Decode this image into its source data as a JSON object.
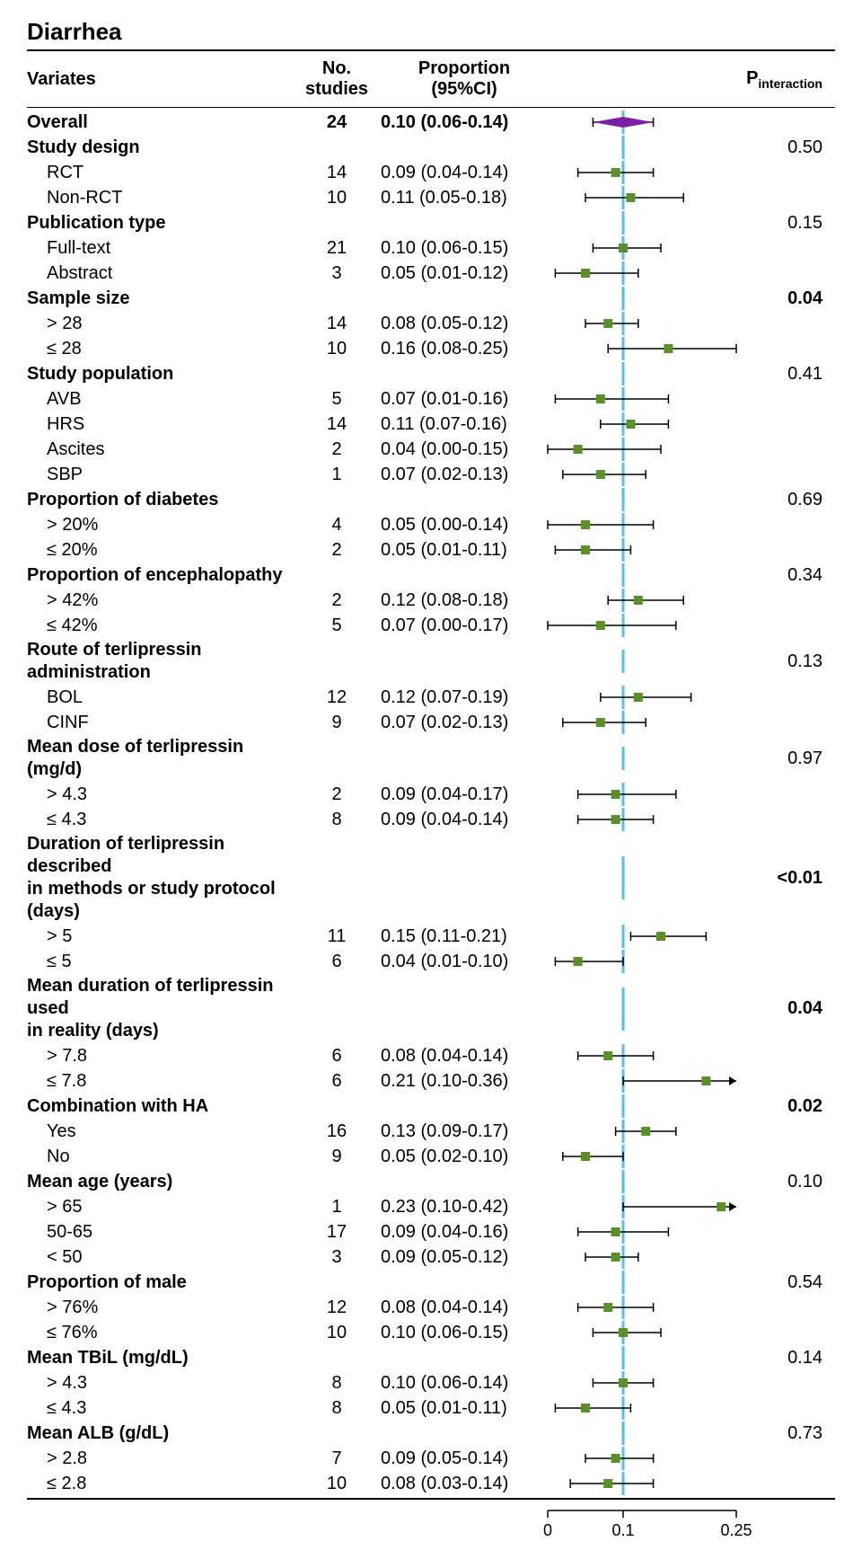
{
  "title": "Diarrhea",
  "headers": {
    "variates": "Variates",
    "studies_line1": "No.",
    "studies_line2": "studies",
    "prop_line1": "Proportion",
    "prop_line2": "(95%CI)",
    "pint_main": "P",
    "pint_sub": "interaction"
  },
  "plot": {
    "xmin": 0,
    "xmax": 0.25,
    "ref_line": 0.1,
    "ref_line_color": "#5bc0de",
    "marker_color": "#5a8f29",
    "marker_size": 10,
    "diamond_color": "#7b1fa2",
    "error_bar_color": "#000000",
    "tick_values": [
      0,
      0.1,
      0.25
    ],
    "tick_labels": [
      "0",
      "0.1",
      "0.25"
    ],
    "axis_font_size": 18
  },
  "rows": [
    {
      "type": "overall",
      "label": "Overall",
      "studies": "24",
      "prop": "0.10 (0.06-0.14)",
      "est": 0.1,
      "lo": 0.06,
      "hi": 0.14,
      "bold": true
    },
    {
      "type": "group",
      "label": "Study design",
      "pint": "0.50"
    },
    {
      "type": "item",
      "label": "RCT",
      "studies": "14",
      "prop": "0.09 (0.04-0.14)",
      "est": 0.09,
      "lo": 0.04,
      "hi": 0.14
    },
    {
      "type": "item",
      "label": "Non-RCT",
      "studies": "10",
      "prop": "0.11 (0.05-0.18)",
      "est": 0.11,
      "lo": 0.05,
      "hi": 0.18
    },
    {
      "type": "group",
      "label": "Publication type",
      "pint": "0.15"
    },
    {
      "type": "item",
      "label": "Full-text",
      "studies": "21",
      "prop": "0.10 (0.06-0.15)",
      "est": 0.1,
      "lo": 0.06,
      "hi": 0.15
    },
    {
      "type": "item",
      "label": "Abstract",
      "studies": "3",
      "prop": "0.05 (0.01-0.12)",
      "est": 0.05,
      "lo": 0.01,
      "hi": 0.12
    },
    {
      "type": "group",
      "label": "Sample size",
      "pint": "0.04",
      "pint_bold": true
    },
    {
      "type": "item",
      "label": "> 28",
      "studies": "14",
      "prop": "0.08 (0.05-0.12)",
      "est": 0.08,
      "lo": 0.05,
      "hi": 0.12
    },
    {
      "type": "item",
      "label": "≤ 28",
      "studies": "10",
      "prop": "0.16 (0.08-0.25)",
      "est": 0.16,
      "lo": 0.08,
      "hi": 0.25
    },
    {
      "type": "group",
      "label": "Study population",
      "pint": "0.41"
    },
    {
      "type": "item",
      "label": "AVB",
      "studies": "5",
      "prop": "0.07 (0.01-0.16)",
      "est": 0.07,
      "lo": 0.01,
      "hi": 0.16
    },
    {
      "type": "item",
      "label": "HRS",
      "studies": "14",
      "prop": "0.11 (0.07-0.16)",
      "est": 0.11,
      "lo": 0.07,
      "hi": 0.16
    },
    {
      "type": "item",
      "label": "Ascites",
      "studies": "2",
      "prop": "0.04 (0.00-0.15)",
      "est": 0.04,
      "lo": 0.0,
      "hi": 0.15
    },
    {
      "type": "item",
      "label": "SBP",
      "studies": "1",
      "prop": "0.07 (0.02-0.13)",
      "est": 0.07,
      "lo": 0.02,
      "hi": 0.13
    },
    {
      "type": "group",
      "label": "Proportion of diabetes",
      "pint": "0.69"
    },
    {
      "type": "item",
      "label": "> 20%",
      "studies": "4",
      "prop": "0.05 (0.00-0.14)",
      "est": 0.05,
      "lo": 0.0,
      "hi": 0.14
    },
    {
      "type": "item",
      "label": "≤ 20%",
      "studies": "2",
      "prop": "0.05 (0.01-0.11)",
      "est": 0.05,
      "lo": 0.01,
      "hi": 0.11
    },
    {
      "type": "group",
      "label": "Proportion of encephalopathy",
      "pint": "0.34"
    },
    {
      "type": "item",
      "label": "> 42%",
      "studies": "2",
      "prop": "0.12 (0.08-0.18)",
      "est": 0.12,
      "lo": 0.08,
      "hi": 0.18
    },
    {
      "type": "item",
      "label": "≤ 42%",
      "studies": "5",
      "prop": "0.07 (0.00-0.17)",
      "est": 0.07,
      "lo": 0.0,
      "hi": 0.17
    },
    {
      "type": "group",
      "label": "Route of terlipressin administration",
      "pint": "0.13"
    },
    {
      "type": "item",
      "label": "BOL",
      "studies": "12",
      "prop": "0.12 (0.07-0.19)",
      "est": 0.12,
      "lo": 0.07,
      "hi": 0.19
    },
    {
      "type": "item",
      "label": "CINF",
      "studies": "9",
      "prop": "0.07 (0.02-0.13)",
      "est": 0.07,
      "lo": 0.02,
      "hi": 0.13
    },
    {
      "type": "group",
      "label": "Mean dose of terlipressin (mg/d)",
      "pint": "0.97"
    },
    {
      "type": "item",
      "label": "> 4.3",
      "studies": "2",
      "prop": "0.09 (0.04-0.17)",
      "est": 0.09,
      "lo": 0.04,
      "hi": 0.17
    },
    {
      "type": "item",
      "label": "≤ 4.3",
      "studies": "8",
      "prop": "0.09 (0.04-0.14)",
      "est": 0.09,
      "lo": 0.04,
      "hi": 0.14
    },
    {
      "type": "group",
      "label": "Duration of terlipressin described",
      "label2": "in methods or study protocol (days)",
      "pint": "<0.01",
      "pint_bold": true
    },
    {
      "type": "item",
      "label": "> 5",
      "studies": "11",
      "prop": "0.15 (0.11-0.21)",
      "est": 0.15,
      "lo": 0.11,
      "hi": 0.21
    },
    {
      "type": "item",
      "label": "≤ 5",
      "studies": "6",
      "prop": "0.04 (0.01-0.10)",
      "est": 0.04,
      "lo": 0.01,
      "hi": 0.1
    },
    {
      "type": "group",
      "label": "Mean duration of terlipressin used",
      "label2": "in reality (days)",
      "pint": "0.04",
      "pint_bold": true
    },
    {
      "type": "item",
      "label": "> 7.8",
      "studies": "6",
      "prop": "0.08 (0.04-0.14)",
      "est": 0.08,
      "lo": 0.04,
      "hi": 0.14
    },
    {
      "type": "item",
      "label": "≤ 7.8",
      "studies": "6",
      "prop": "0.21 (0.10-0.36)",
      "est": 0.21,
      "lo": 0.1,
      "hi": 0.36,
      "arrow_right": true
    },
    {
      "type": "group",
      "label": "Combination with HA",
      "pint": "0.02",
      "pint_bold": true
    },
    {
      "type": "item",
      "label": "Yes",
      "studies": "16",
      "prop": "0.13 (0.09-0.17)",
      "est": 0.13,
      "lo": 0.09,
      "hi": 0.17
    },
    {
      "type": "item",
      "label": "No",
      "studies": "9",
      "prop": "0.05 (0.02-0.10)",
      "est": 0.05,
      "lo": 0.02,
      "hi": 0.1
    },
    {
      "type": "group",
      "label": "Mean age (years)",
      "pint": "0.10"
    },
    {
      "type": "item",
      "label": "> 65",
      "studies": "1",
      "prop": "0.23 (0.10-0.42)",
      "est": 0.23,
      "lo": 0.1,
      "hi": 0.42,
      "arrow_right": true
    },
    {
      "type": "item",
      "label": "50-65",
      "studies": "17",
      "prop": "0.09 (0.04-0.16)",
      "est": 0.09,
      "lo": 0.04,
      "hi": 0.16
    },
    {
      "type": "item",
      "label": "< 50",
      "studies": "3",
      "prop": "0.09 (0.05-0.12)",
      "est": 0.09,
      "lo": 0.05,
      "hi": 0.12
    },
    {
      "type": "group",
      "label": "Proportion of male",
      "pint": "0.54"
    },
    {
      "type": "item",
      "label": "> 76%",
      "studies": "12",
      "prop": "0.08 (0.04-0.14)",
      "est": 0.08,
      "lo": 0.04,
      "hi": 0.14
    },
    {
      "type": "item",
      "label": "≤ 76%",
      "studies": "10",
      "prop": "0.10 (0.06-0.15)",
      "est": 0.1,
      "lo": 0.06,
      "hi": 0.15
    },
    {
      "type": "group",
      "label": "Mean TBiL (mg/dL)",
      "pint": "0.14"
    },
    {
      "type": "item",
      "label": "> 4.3",
      "studies": "8",
      "prop": "0.10 (0.06-0.14)",
      "est": 0.1,
      "lo": 0.06,
      "hi": 0.14
    },
    {
      "type": "item",
      "label": "≤ 4.3",
      "studies": "8",
      "prop": "0.05 (0.01-0.11)",
      "est": 0.05,
      "lo": 0.01,
      "hi": 0.11
    },
    {
      "type": "group",
      "label": "Mean ALB (g/dL)",
      "pint": "0.73"
    },
    {
      "type": "item",
      "label": "> 2.8",
      "studies": "7",
      "prop": "0.09 (0.05-0.14)",
      "est": 0.09,
      "lo": 0.05,
      "hi": 0.14
    },
    {
      "type": "item",
      "label": "≤ 2.8",
      "studies": "10",
      "prop": "0.08 (0.03-0.14)",
      "est": 0.08,
      "lo": 0.03,
      "hi": 0.14
    }
  ]
}
